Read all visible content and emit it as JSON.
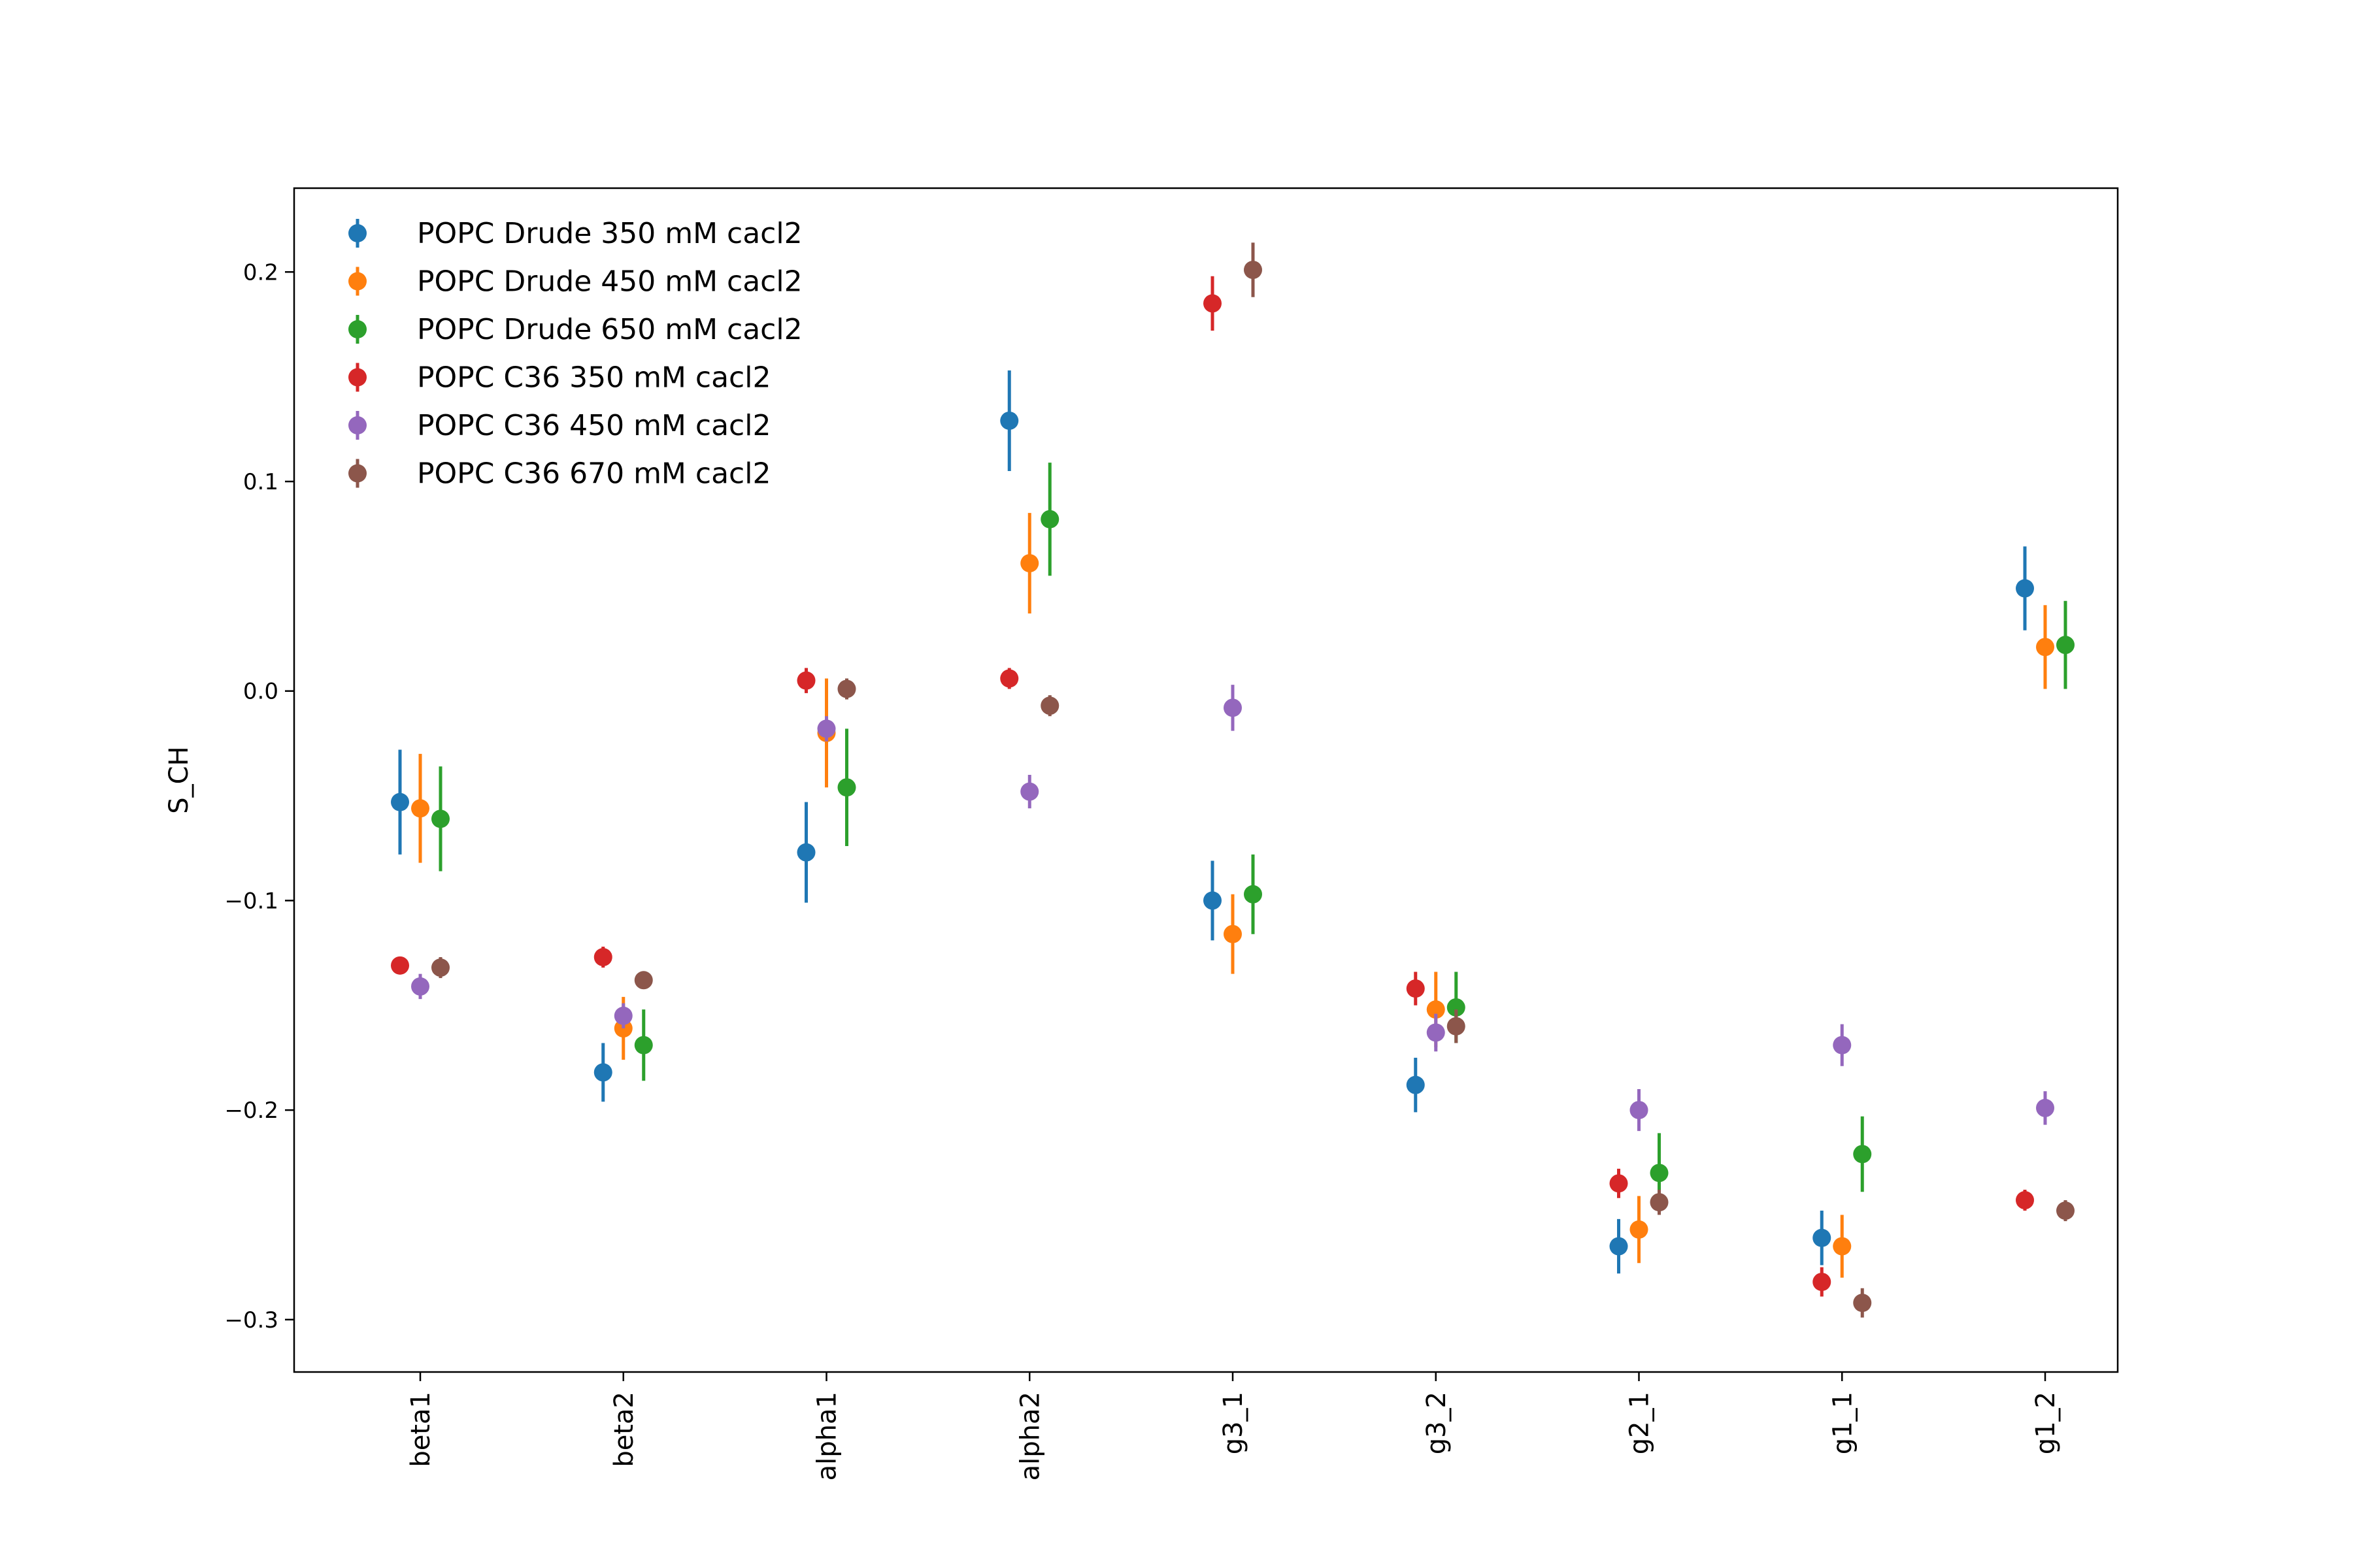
{
  "chart_data": {
    "type": "scatter",
    "title": "",
    "xlabel": "",
    "ylabel": "S_CH",
    "categories": [
      "beta1",
      "beta2",
      "alpha1",
      "alpha2",
      "g3_1",
      "g3_2",
      "g2_1",
      "g1_1",
      "g1_2"
    ],
    "ylim": [
      -0.325,
      0.24
    ],
    "yticks": [
      -0.3,
      -0.2,
      -0.1,
      0.0,
      0.1,
      0.2
    ],
    "ytick_labels": [
      "−0.3",
      "−0.2",
      "−0.1",
      "0.0",
      "0.1",
      "0.2"
    ],
    "grid": false,
    "legend_position": "upper-left",
    "series": [
      {
        "name": "POPC Drude 350 mM cacl2",
        "color": "#1f77b4",
        "values": [
          -0.053,
          -0.182,
          -0.077,
          0.129,
          -0.1,
          -0.188,
          -0.265,
          -0.261,
          0.049
        ],
        "errors": [
          0.025,
          0.014,
          0.024,
          0.024,
          0.019,
          0.013,
          0.013,
          0.013,
          0.02
        ]
      },
      {
        "name": "POPC Drude 450 mM cacl2",
        "color": "#ff7f0e",
        "values": [
          -0.056,
          -0.161,
          -0.02,
          0.061,
          -0.116,
          -0.152,
          -0.257,
          -0.265,
          0.021
        ],
        "errors": [
          0.026,
          0.015,
          0.026,
          0.024,
          0.019,
          0.018,
          0.016,
          0.015,
          0.02
        ]
      },
      {
        "name": "POPC Drude 650 mM cacl2",
        "color": "#2ca02c",
        "values": [
          -0.061,
          -0.169,
          -0.046,
          0.082,
          -0.097,
          -0.151,
          -0.23,
          -0.221,
          0.022
        ],
        "errors": [
          0.025,
          0.017,
          0.028,
          0.027,
          0.019,
          0.017,
          0.019,
          0.018,
          0.021
        ]
      },
      {
        "name": "POPC C36 350 mM cacl2",
        "color": "#d62728",
        "values": [
          -0.131,
          -0.127,
          0.005,
          0.006,
          0.185,
          -0.142,
          -0.235,
          -0.282,
          -0.243
        ],
        "errors": [
          0.004,
          0.005,
          0.006,
          0.005,
          0.013,
          0.008,
          0.007,
          0.007,
          0.005
        ]
      },
      {
        "name": "POPC C36 450 mM cacl2",
        "color": "#9467bd",
        "values": [
          -0.141,
          -0.155,
          -0.018,
          -0.048,
          -0.008,
          -0.163,
          -0.2,
          -0.169,
          -0.199
        ],
        "errors": [
          0.006,
          0.006,
          0.006,
          0.008,
          0.011,
          0.009,
          0.01,
          0.01,
          0.008
        ]
      },
      {
        "name": "POPC C36 670 mM cacl2",
        "color": "#8c564b",
        "values": [
          -0.132,
          -0.138,
          0.001,
          -0.007,
          0.201,
          -0.16,
          -0.244,
          -0.292,
          -0.248
        ],
        "errors": [
          0.005,
          0.004,
          0.005,
          0.005,
          0.013,
          0.008,
          0.006,
          0.007,
          0.005
        ]
      }
    ]
  }
}
